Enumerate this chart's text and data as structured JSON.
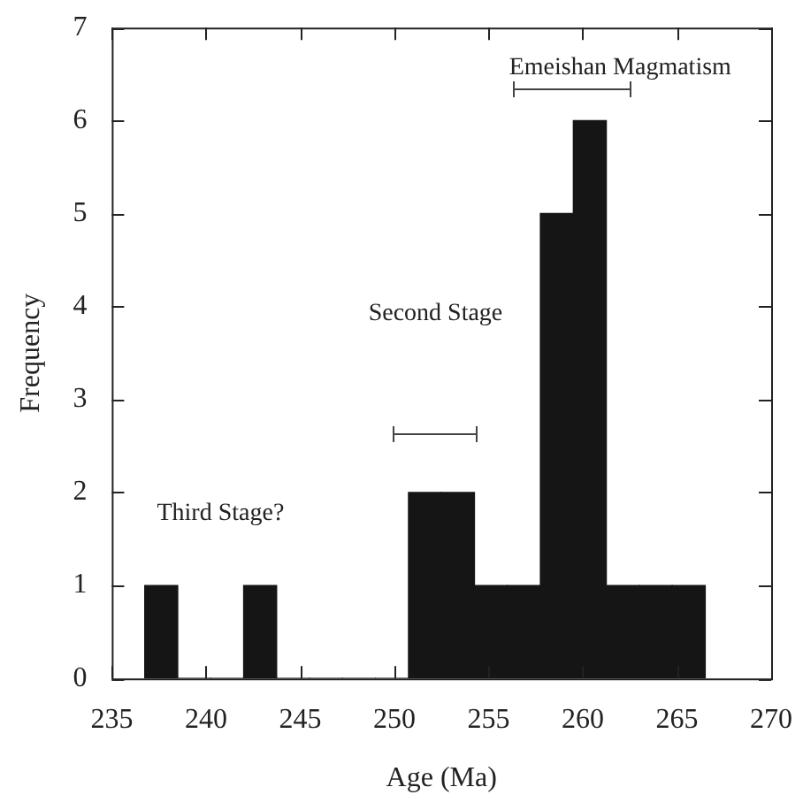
{
  "chart_data": {
    "type": "histogram",
    "xlabel": "Age (Ma)",
    "ylabel": "Frequency",
    "bins": [
      236.75,
      238.5,
      240.25,
      242,
      243.75,
      245.5,
      247.25,
      249,
      250.75,
      252.5,
      254.25,
      256,
      257.75,
      259.5,
      261.25,
      263,
      264.75,
      266.5
    ],
    "values": [
      1,
      0,
      0,
      1,
      0,
      0,
      0,
      0,
      2,
      2,
      1,
      1,
      5,
      6,
      1,
      1,
      1
    ],
    "color": "#141514",
    "xlim": [
      235,
      270
    ],
    "xticks": [
      235,
      240,
      245,
      250,
      255,
      260,
      265,
      270
    ],
    "ylim": [
      0,
      7
    ],
    "yticks": [
      0,
      1,
      2,
      3,
      4,
      5,
      6,
      7
    ],
    "grid": false,
    "legend": false,
    "annotations": [
      "Third Stage?",
      "Second Stage",
      "Emeishan Magmatism"
    ]
  }
}
